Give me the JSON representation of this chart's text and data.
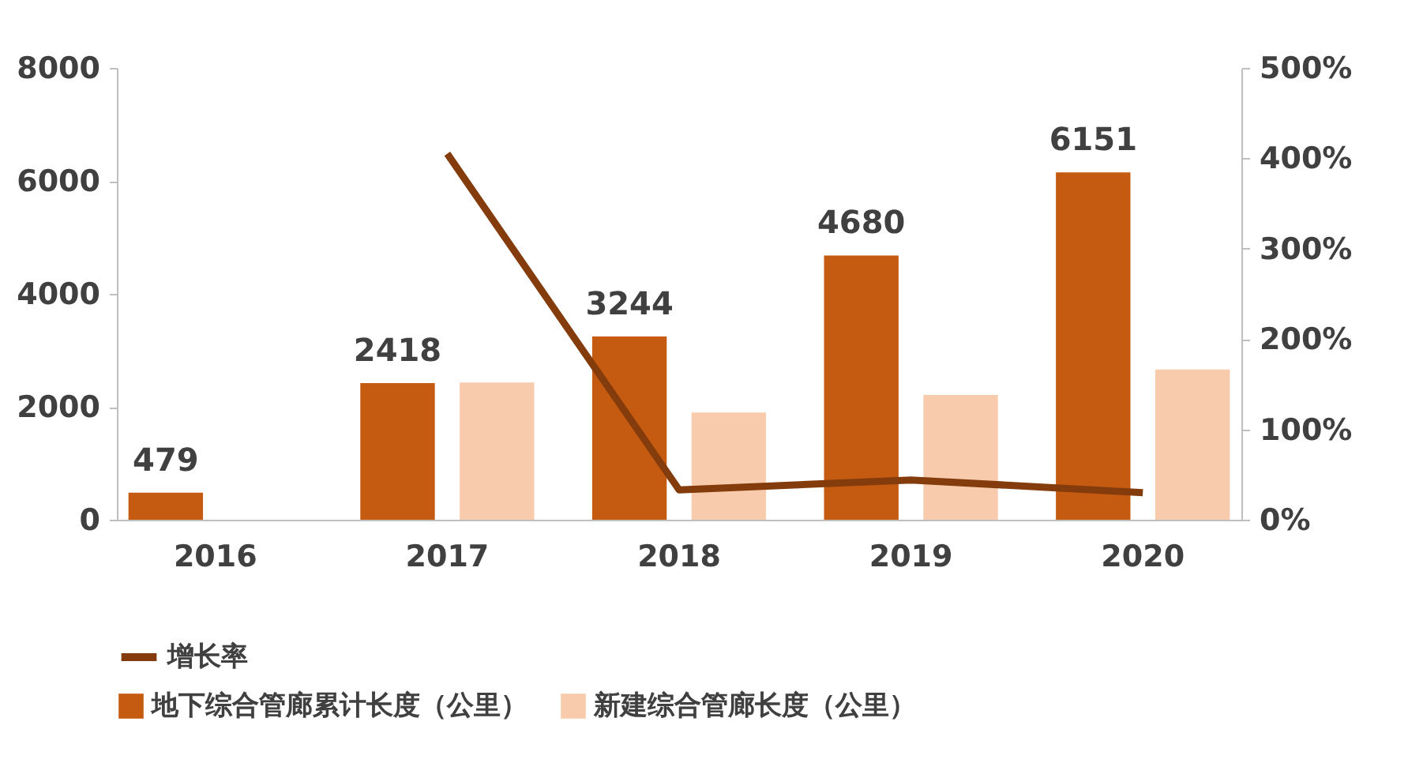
{
  "chart_data": {
    "type": "bar",
    "categories": [
      "2016",
      "2017",
      "2018",
      "2019",
      "2020"
    ],
    "series": [
      {
        "name": "地下综合管廊累计长度（公里）",
        "color": "#c55a11",
        "values": [
          479,
          2418,
          3244,
          4680,
          6151
        ],
        "value_labels": [
          "479",
          "2418",
          "3244",
          "4680",
          "6151"
        ]
      },
      {
        "name": "新建综合管廊长度（公里）",
        "color": "#f8cbad",
        "values": [
          null,
          2430,
          1900,
          2210,
          2660
        ]
      },
      {
        "name": "增长率",
        "type": "line",
        "axis": "y2",
        "color": "#843c0c",
        "values": [
          null,
          405,
          33,
          44,
          30
        ]
      }
    ],
    "ylim": [
      0,
      8000
    ],
    "yticks": [
      0,
      2000,
      4000,
      6000,
      8000
    ],
    "y2lim": [
      0,
      500
    ],
    "y2ticks": [
      {
        "value": 0,
        "label": "0%"
      },
      {
        "value": 100,
        "label": "100%"
      },
      {
        "value": 200,
        "label": "200%"
      },
      {
        "value": 300,
        "label": "300%"
      },
      {
        "value": 400,
        "label": "400%"
      },
      {
        "value": 500,
        "label": "500%"
      }
    ],
    "grid": false,
    "legend": "bottom",
    "marker": "none",
    "line_style": "solid"
  }
}
